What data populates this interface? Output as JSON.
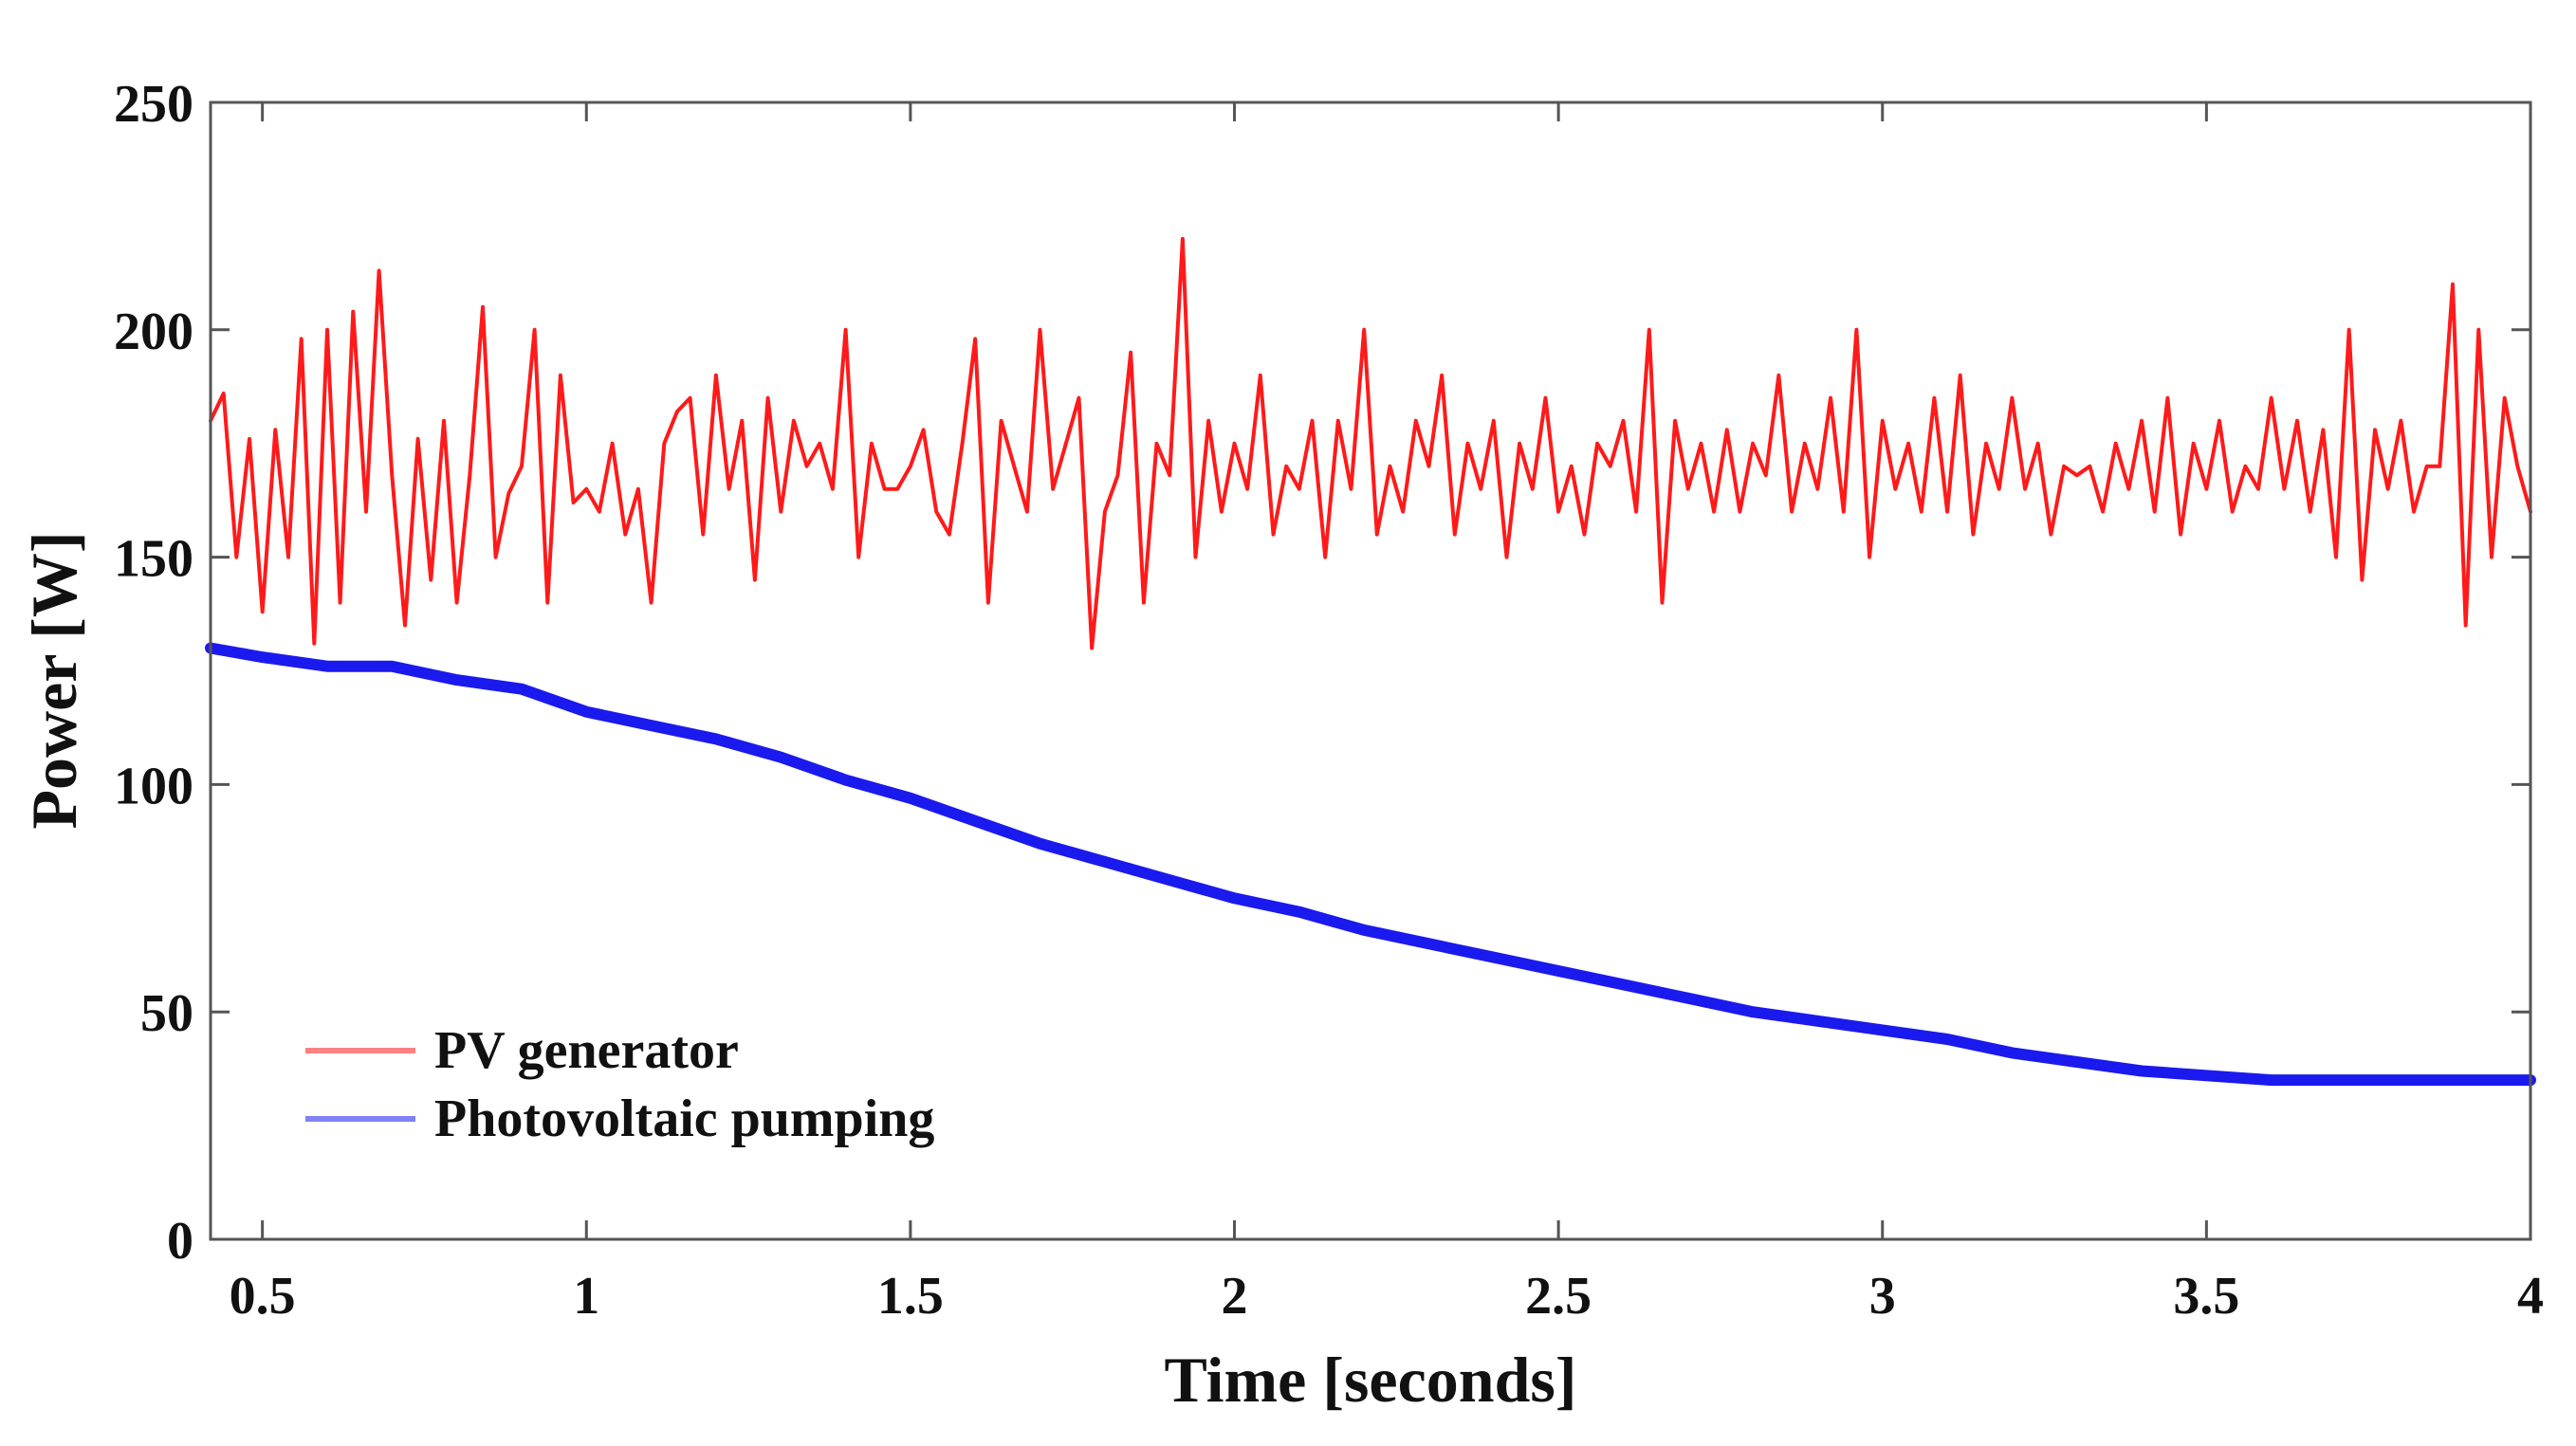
{
  "chart_data": {
    "type": "line",
    "title": "",
    "xlabel": "Time [seconds]",
    "ylabel": "Power [W]",
    "xlim": [
      0.42,
      4
    ],
    "ylim": [
      0,
      250
    ],
    "xticks": [
      0.5,
      1,
      1.5,
      2,
      2.5,
      3,
      3.5,
      4
    ],
    "xtick_labels": [
      "0.5",
      "1",
      "1.5",
      "2",
      "2.5",
      "3",
      "3.5",
      "4"
    ],
    "yticks": [
      0,
      50,
      100,
      150,
      200,
      250
    ],
    "ytick_labels": [
      "0",
      "50",
      "100",
      "150",
      "200",
      "250"
    ],
    "grid": false,
    "legend_position": "bottom-left",
    "series": [
      {
        "name": "PV generator",
        "color": "#ff1a1a",
        "x": [
          0.42,
          0.44,
          0.46,
          0.48,
          0.5,
          0.52,
          0.54,
          0.56,
          0.58,
          0.6,
          0.62,
          0.64,
          0.66,
          0.68,
          0.7,
          0.72,
          0.74,
          0.76,
          0.78,
          0.8,
          0.82,
          0.84,
          0.86,
          0.88,
          0.9,
          0.92,
          0.94,
          0.96,
          0.98,
          1.0,
          1.02,
          1.04,
          1.06,
          1.08,
          1.1,
          1.12,
          1.14,
          1.16,
          1.18,
          1.2,
          1.22,
          1.24,
          1.26,
          1.28,
          1.3,
          1.32,
          1.34,
          1.36,
          1.38,
          1.4,
          1.42,
          1.44,
          1.46,
          1.48,
          1.5,
          1.52,
          1.54,
          1.56,
          1.58,
          1.6,
          1.62,
          1.64,
          1.66,
          1.68,
          1.7,
          1.72,
          1.74,
          1.76,
          1.78,
          1.8,
          1.82,
          1.84,
          1.86,
          1.88,
          1.9,
          1.92,
          1.94,
          1.96,
          1.98,
          2.0,
          2.02,
          2.04,
          2.06,
          2.08,
          2.1,
          2.12,
          2.14,
          2.16,
          2.18,
          2.2,
          2.22,
          2.24,
          2.26,
          2.28,
          2.3,
          2.32,
          2.34,
          2.36,
          2.38,
          2.4,
          2.42,
          2.44,
          2.46,
          2.48,
          2.5,
          2.52,
          2.54,
          2.56,
          2.58,
          2.6,
          2.62,
          2.64,
          2.66,
          2.68,
          2.7,
          2.72,
          2.74,
          2.76,
          2.78,
          2.8,
          2.82,
          2.84,
          2.86,
          2.88,
          2.9,
          2.92,
          2.94,
          2.96,
          2.98,
          3.0,
          3.02,
          3.04,
          3.06,
          3.08,
          3.1,
          3.12,
          3.14,
          3.16,
          3.18,
          3.2,
          3.22,
          3.24,
          3.26,
          3.28,
          3.3,
          3.32,
          3.34,
          3.36,
          3.38,
          3.4,
          3.42,
          3.44,
          3.46,
          3.48,
          3.5,
          3.52,
          3.54,
          3.56,
          3.58,
          3.6,
          3.62,
          3.64,
          3.66,
          3.68,
          3.7,
          3.72,
          3.74,
          3.76,
          3.78,
          3.8,
          3.82,
          3.84,
          3.86,
          3.88,
          3.9,
          3.92,
          3.94,
          3.96,
          3.98,
          4.0
        ],
        "values": [
          180,
          186,
          150,
          176,
          138,
          178,
          150,
          198,
          131,
          200,
          140,
          204,
          160,
          213,
          168,
          135,
          176,
          145,
          180,
          140,
          168,
          205,
          150,
          164,
          170,
          200,
          140,
          190,
          162,
          165,
          160,
          175,
          155,
          165,
          140,
          175,
          182,
          185,
          155,
          190,
          165,
          180,
          145,
          185,
          160,
          180,
          170,
          175,
          165,
          200,
          150,
          175,
          165,
          165,
          170,
          178,
          160,
          155,
          175,
          198,
          140,
          180,
          170,
          160,
          200,
          165,
          175,
          185,
          130,
          160,
          168,
          195,
          140,
          175,
          168,
          220,
          150,
          180,
          160,
          175,
          165,
          190,
          155,
          170,
          165,
          180,
          150,
          180,
          165,
          200,
          155,
          170,
          160,
          180,
          170,
          190,
          155,
          175,
          165,
          180,
          150,
          175,
          165,
          185,
          160,
          170,
          155,
          175,
          170,
          180,
          160,
          200,
          140,
          180,
          165,
          175,
          160,
          178,
          160,
          175,
          168,
          190,
          160,
          175,
          165,
          185,
          160,
          200,
          150,
          180,
          165,
          175,
          160,
          185,
          160,
          190,
          155,
          175,
          165,
          185,
          165,
          175,
          155,
          170,
          168,
          170,
          160,
          175,
          165,
          180,
          160,
          185,
          155,
          175,
          165,
          180,
          160,
          170,
          165,
          185,
          165,
          180,
          160,
          178,
          150,
          200,
          145,
          178,
          165,
          180,
          160,
          170,
          170,
          210,
          135,
          200,
          150,
          185,
          170,
          160
        ]
      },
      {
        "name": "Photovoltaic pumping",
        "color": "#1a1aee",
        "x": [
          0.42,
          0.5,
          0.6,
          0.7,
          0.8,
          0.9,
          1.0,
          1.1,
          1.2,
          1.3,
          1.4,
          1.5,
          1.6,
          1.7,
          1.8,
          1.9,
          2.0,
          2.1,
          2.2,
          2.3,
          2.4,
          2.5,
          2.6,
          2.7,
          2.8,
          2.9,
          3.0,
          3.1,
          3.2,
          3.3,
          3.4,
          3.5,
          3.6,
          3.7,
          3.8,
          3.9,
          4.0
        ],
        "values": [
          130,
          128,
          126,
          126,
          123,
          121,
          116,
          113,
          110,
          106,
          101,
          97,
          92,
          87,
          83,
          79,
          75,
          72,
          68,
          65,
          62,
          59,
          56,
          53,
          50,
          48,
          46,
          44,
          41,
          39,
          37,
          36,
          35,
          35,
          35,
          35,
          35
        ]
      }
    ]
  }
}
